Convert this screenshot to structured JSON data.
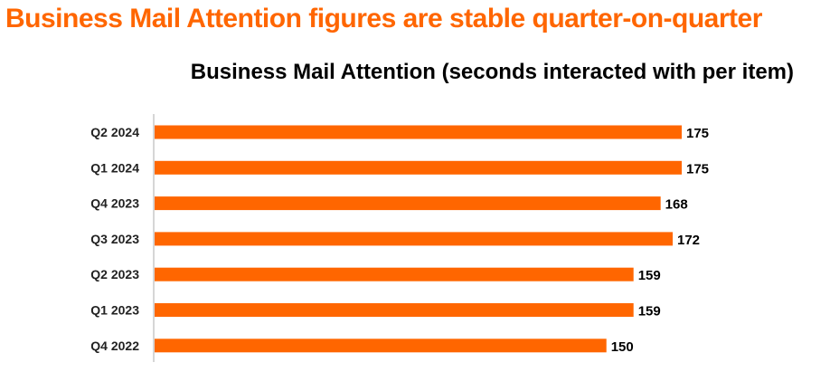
{
  "headline": "Business Mail Attention figures are stable quarter-on-quarter",
  "colors": {
    "accent": "#FF6600",
    "axis": "#C8C8C8",
    "text": "#000000"
  },
  "chart_data": {
    "type": "bar",
    "orientation": "horizontal",
    "title": "Business Mail Attention (seconds interacted with per item)",
    "xlabel": "",
    "ylabel": "",
    "categories": [
      "Q2 2024",
      "Q1 2024",
      "Q4 2023",
      "Q3 2023",
      "Q2 2023",
      "Q1 2023",
      "Q4 2022"
    ],
    "values": [
      175,
      175,
      168,
      172,
      159,
      159,
      150
    ],
    "grid": false,
    "legend": "none",
    "data_labels": true
  }
}
